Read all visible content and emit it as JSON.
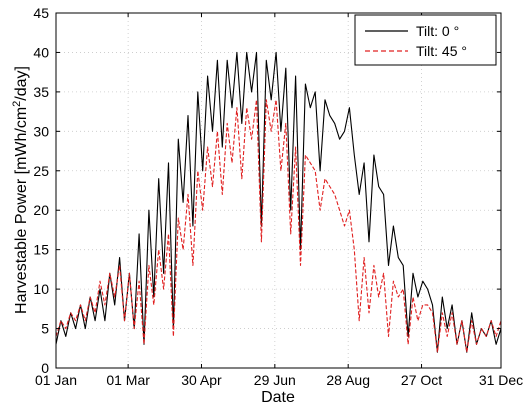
{
  "chart_data": {
    "type": "line",
    "xlabel": "Date",
    "ylabel": "Harvestable Power [mWh/cm",
    "ylabel_sup": "2",
    "ylabel_tail": "/day]",
    "xlim": [
      "01 Jan",
      "31 Dec"
    ],
    "ylim": [
      0,
      45
    ],
    "x_ticks": [
      {
        "date": "2011-01-01",
        "label": "01 Jan"
      },
      {
        "date": "2011-03-01",
        "label": "01 Mar"
      },
      {
        "date": "2011-04-30",
        "label": "30 Apr"
      },
      {
        "date": "2011-06-29",
        "label": "29 Jun"
      },
      {
        "date": "2011-08-28",
        "label": "28 Aug"
      },
      {
        "date": "2011-10-27",
        "label": "27 Oct"
      },
      {
        "date": "2011-12-31",
        "label": "31 Dec"
      }
    ],
    "y_ticks": [
      0,
      5,
      10,
      15,
      20,
      25,
      30,
      35,
      40,
      45
    ],
    "grid": true,
    "legend_position": "top-right",
    "series": [
      {
        "name": "Tilt: 0 °",
        "color": "#000000",
        "style": "solid",
        "x": [
          "2011-01-01",
          "2011-01-05",
          "2011-01-09",
          "2011-01-13",
          "2011-01-17",
          "2011-01-21",
          "2011-01-25",
          "2011-01-29",
          "2011-02-02",
          "2011-02-06",
          "2011-02-10",
          "2011-02-14",
          "2011-02-18",
          "2011-02-22",
          "2011-02-26",
          "2011-03-02",
          "2011-03-06",
          "2011-03-10",
          "2011-03-14",
          "2011-03-18",
          "2011-03-22",
          "2011-03-26",
          "2011-03-30",
          "2011-04-03",
          "2011-04-07",
          "2011-04-11",
          "2011-04-15",
          "2011-04-19",
          "2011-04-23",
          "2011-04-27",
          "2011-05-01",
          "2011-05-05",
          "2011-05-09",
          "2011-05-13",
          "2011-05-17",
          "2011-05-21",
          "2011-05-25",
          "2011-05-29",
          "2011-06-02",
          "2011-06-06",
          "2011-06-10",
          "2011-06-14",
          "2011-06-18",
          "2011-06-22",
          "2011-06-26",
          "2011-06-30",
          "2011-07-04",
          "2011-07-08",
          "2011-07-12",
          "2011-07-16",
          "2011-07-20",
          "2011-07-24",
          "2011-07-28",
          "2011-08-01",
          "2011-08-05",
          "2011-08-09",
          "2011-08-13",
          "2011-08-17",
          "2011-08-21",
          "2011-08-25",
          "2011-08-29",
          "2011-09-02",
          "2011-09-06",
          "2011-09-10",
          "2011-09-14",
          "2011-09-18",
          "2011-09-22",
          "2011-09-26",
          "2011-09-30",
          "2011-10-04",
          "2011-10-08",
          "2011-10-12",
          "2011-10-16",
          "2011-10-20",
          "2011-10-24",
          "2011-10-28",
          "2011-11-01",
          "2011-11-05",
          "2011-11-09",
          "2011-11-13",
          "2011-11-17",
          "2011-11-21",
          "2011-11-25",
          "2011-11-29",
          "2011-12-03",
          "2011-12-07",
          "2011-12-11",
          "2011-12-15",
          "2011-12-19",
          "2011-12-23",
          "2011-12-27",
          "2011-12-31"
        ],
        "y": [
          3,
          6,
          4,
          7,
          5,
          8,
          5,
          9,
          6,
          10,
          6,
          12,
          8,
          14,
          6,
          12,
          5,
          17,
          3,
          20,
          9,
          24,
          12,
          26,
          5,
          29,
          21,
          32,
          18,
          35,
          25,
          37,
          30,
          39,
          28,
          39,
          33,
          40,
          31,
          40,
          35,
          40,
          18,
          39,
          34,
          40,
          30,
          38,
          20,
          37,
          15,
          36,
          33,
          35,
          25,
          34,
          32,
          31,
          29,
          30,
          33,
          27,
          22,
          26,
          16,
          27,
          23,
          22,
          13,
          18,
          14,
          13,
          4,
          12,
          9,
          11,
          10,
          8,
          2,
          9,
          5,
          8,
          3,
          6,
          2,
          7,
          3,
          5,
          4,
          6,
          3,
          5
        ]
      },
      {
        "name": "Tilt: 45 °",
        "color": "#e02020",
        "style": "dashed",
        "x": [
          "2011-01-01",
          "2011-01-05",
          "2011-01-09",
          "2011-01-13",
          "2011-01-17",
          "2011-01-21",
          "2011-01-25",
          "2011-01-29",
          "2011-02-02",
          "2011-02-06",
          "2011-02-10",
          "2011-02-14",
          "2011-02-18",
          "2011-02-22",
          "2011-02-26",
          "2011-03-02",
          "2011-03-06",
          "2011-03-10",
          "2011-03-14",
          "2011-03-18",
          "2011-03-22",
          "2011-03-26",
          "2011-03-30",
          "2011-04-03",
          "2011-04-07",
          "2011-04-11",
          "2011-04-15",
          "2011-04-19",
          "2011-04-23",
          "2011-04-27",
          "2011-05-01",
          "2011-05-05",
          "2011-05-09",
          "2011-05-13",
          "2011-05-17",
          "2011-05-21",
          "2011-05-25",
          "2011-05-29",
          "2011-06-02",
          "2011-06-06",
          "2011-06-10",
          "2011-06-14",
          "2011-06-18",
          "2011-06-22",
          "2011-06-26",
          "2011-06-30",
          "2011-07-04",
          "2011-07-08",
          "2011-07-12",
          "2011-07-16",
          "2011-07-20",
          "2011-07-24",
          "2011-07-28",
          "2011-08-01",
          "2011-08-05",
          "2011-08-09",
          "2011-08-13",
          "2011-08-17",
          "2011-08-21",
          "2011-08-25",
          "2011-08-29",
          "2011-09-02",
          "2011-09-06",
          "2011-09-10",
          "2011-09-14",
          "2011-09-18",
          "2011-09-22",
          "2011-09-26",
          "2011-09-30",
          "2011-10-04",
          "2011-10-08",
          "2011-10-12",
          "2011-10-16",
          "2011-10-20",
          "2011-10-24",
          "2011-10-28",
          "2011-11-01",
          "2011-11-05",
          "2011-11-09",
          "2011-11-13",
          "2011-11-17",
          "2011-11-21",
          "2011-11-25",
          "2011-11-29",
          "2011-12-03",
          "2011-12-07",
          "2011-12-11",
          "2011-12-15",
          "2011-12-19",
          "2011-12-23",
          "2011-12-27",
          "2011-12-31"
        ],
        "y": [
          4,
          6,
          5,
          7,
          6,
          8,
          6,
          9,
          7,
          11,
          8,
          12,
          9,
          13,
          6,
          12,
          5,
          11,
          3,
          13,
          8,
          15,
          10,
          17,
          4,
          19,
          15,
          22,
          13,
          25,
          20,
          28,
          23,
          30,
          22,
          31,
          26,
          33,
          24,
          33,
          29,
          34,
          16,
          34,
          30,
          34,
          25,
          31,
          17,
          28,
          13,
          27,
          26,
          25,
          20,
          24,
          23,
          22,
          20,
          18,
          20,
          15,
          6,
          14,
          7,
          13,
          9,
          12,
          4,
          11,
          9,
          10,
          3,
          9,
          6,
          8,
          8,
          7,
          2,
          7,
          4,
          7,
          3,
          6,
          2,
          6,
          3,
          5,
          4,
          6,
          4,
          6
        ]
      }
    ]
  }
}
